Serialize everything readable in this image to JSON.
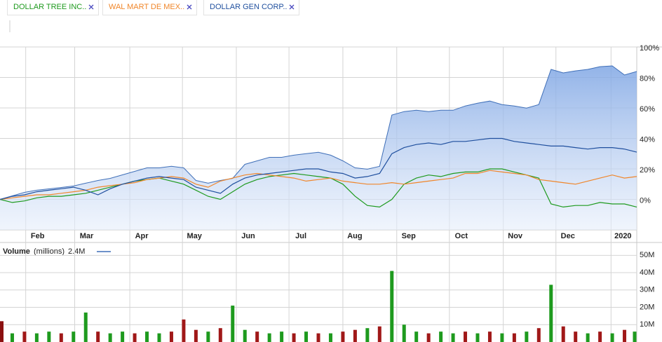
{
  "chart_data": [
    {
      "type": "line",
      "xlim": [
        0,
        52
      ],
      "xticks": [
        {
          "value": 2.1,
          "label": "Feb"
        },
        {
          "value": 6.1,
          "label": "Mar"
        },
        {
          "value": 10.6,
          "label": "Apr"
        },
        {
          "value": 14.9,
          "label": "May"
        },
        {
          "value": 19.3,
          "label": "Jun"
        },
        {
          "value": 23.6,
          "label": "Jul"
        },
        {
          "value": 28,
          "label": "Aug"
        },
        {
          "value": 32.4,
          "label": "Sep"
        },
        {
          "value": 36.7,
          "label": "Oct"
        },
        {
          "value": 41.1,
          "label": "Nov"
        },
        {
          "value": 45.4,
          "label": "Dec"
        },
        {
          "value": 49.9,
          "label": "2020"
        }
      ],
      "ylim": [
        -20,
        100
      ],
      "yticks": [
        {
          "value": 0,
          "label": "0%"
        },
        {
          "value": 20,
          "label": "20%"
        },
        {
          "value": 40,
          "label": "40%"
        },
        {
          "value": 60,
          "label": "60%"
        },
        {
          "value": 80,
          "label": "80%"
        },
        {
          "value": 100,
          "label": "100%"
        }
      ],
      "grid": true,
      "series": [
        {
          "color": "#3f6fb8",
          "area": true,
          "values": [
            0,
            2.3,
            4.6,
            6,
            6.9,
            7.8,
            8.8,
            10.6,
            12.4,
            13.8,
            16.1,
            18.4,
            20.7,
            20.7,
            21.7,
            20.7,
            12.4,
            10.6,
            12.4,
            13.8,
            23,
            25.3,
            27.6,
            27.6,
            29,
            30,
            30.9,
            29,
            25.3,
            20.7,
            19.8,
            21.7,
            55.3,
            57.6,
            58.5,
            57.6,
            58.5,
            58.5,
            61.3,
            63.1,
            64.5,
            62.2,
            61.3,
            59.9,
            62.2,
            85.3,
            83,
            84.3,
            85.3,
            87.1,
            87.6,
            81.6,
            83.9
          ]
        },
        {
          "name": "DOLLAR TREE INC..",
          "color": "#1e9a1e",
          "values": [
            0,
            -2,
            -1,
            1,
            2,
            2,
            3,
            4,
            6,
            8,
            10,
            12,
            13,
            14,
            12,
            10,
            6,
            2,
            0,
            5,
            10,
            13,
            15,
            16,
            17,
            16,
            15,
            14,
            10,
            2,
            -4,
            -5,
            0,
            10,
            14,
            16,
            15,
            17,
            18,
            18,
            20,
            20,
            18,
            16,
            14,
            -3,
            -5,
            -4,
            -4,
            -2,
            -3,
            -3,
            -5
          ]
        },
        {
          "name": "WAL MART DE MEX..",
          "color": "#f0862a",
          "values": [
            0,
            1,
            2,
            3,
            3,
            4,
            5,
            6,
            8,
            9,
            10,
            11,
            13,
            14,
            15,
            14,
            10,
            8,
            12,
            14,
            16,
            17,
            16,
            15,
            14,
            12,
            13,
            14,
            12,
            11,
            10,
            10,
            11,
            10,
            11,
            12,
            13,
            14,
            17,
            17,
            19,
            18,
            17,
            16,
            13,
            12,
            11,
            10,
            12,
            14,
            16,
            14,
            15
          ]
        },
        {
          "name": "DOLLAR GEN CORP..",
          "color": "#1f4f9e",
          "values": [
            0,
            2,
            3,
            5,
            6,
            7,
            8,
            6,
            3,
            7,
            10,
            12,
            14,
            15,
            14,
            13,
            8,
            6,
            4,
            10,
            14,
            16,
            17,
            18,
            19,
            20,
            20,
            18,
            17,
            14,
            15,
            17,
            30,
            34,
            36,
            37,
            36,
            38,
            38,
            39,
            40,
            40,
            38,
            37,
            36,
            35,
            35,
            34,
            33,
            34,
            34,
            33,
            31
          ]
        }
      ]
    },
    {
      "type": "bar",
      "title": "Volume",
      "subtitle": "(millions)",
      "annotation": "2.4M",
      "xlim": [
        0,
        52
      ],
      "ylim": [
        0,
        57
      ],
      "yticks": [
        {
          "value": 10,
          "label": "10M"
        },
        {
          "value": 20,
          "label": "20M"
        },
        {
          "value": 30,
          "label": "30M"
        },
        {
          "value": 40,
          "label": "40M"
        },
        {
          "value": 50,
          "label": "50M"
        }
      ],
      "values": [
        12,
        5,
        6,
        5,
        6,
        5,
        6,
        17,
        6,
        5,
        6,
        5,
        6,
        5,
        6,
        13,
        7,
        6,
        8,
        21,
        7,
        6,
        5,
        6,
        5,
        6,
        5,
        5,
        6,
        7,
        8,
        9,
        41,
        10,
        6,
        5,
        6,
        5,
        6,
        5,
        6,
        5,
        5,
        6,
        8,
        33,
        9,
        6,
        5,
        6,
        5,
        7,
        6
      ],
      "colors": [
        "#8b1010",
        "#1e9a1e",
        "#a01818",
        "#1e9a1e",
        "#1e9a1e",
        "#a01818",
        "#1e9a1e",
        "#1e9a1e",
        "#a01818",
        "#1e9a1e",
        "#1e9a1e",
        "#a01818",
        "#1e9a1e",
        "#1e9a1e",
        "#a01818",
        "#a01818",
        "#a01818",
        "#1e9a1e",
        "#a01818",
        "#1e9a1e",
        "#1e9a1e",
        "#a01818",
        "#1e9a1e",
        "#1e9a1e",
        "#a01818",
        "#1e9a1e",
        "#a01818",
        "#1e9a1e",
        "#a01818",
        "#a01818",
        "#1e9a1e",
        "#a01818",
        "#1e9a1e",
        "#1e9a1e",
        "#1e9a1e",
        "#a01818",
        "#1e9a1e",
        "#1e9a1e",
        "#a01818",
        "#1e9a1e",
        "#a01818",
        "#1e9a1e",
        "#a01818",
        "#1e9a1e",
        "#a01818",
        "#1e9a1e",
        "#a01818",
        "#a01818",
        "#1e9a1e",
        "#a01818",
        "#1e9a1e",
        "#a01818",
        "#1e9a1e"
      ]
    }
  ]
}
